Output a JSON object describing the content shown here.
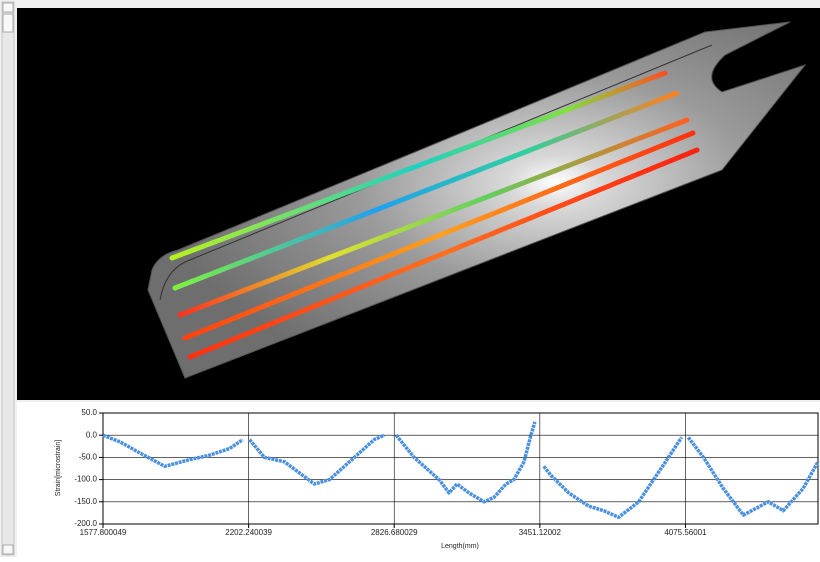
{
  "chart_data": {
    "type": "line",
    "y_label": "Strain[microstrain]",
    "x_label": "Length(mm)",
    "x": [
      1578,
      1651,
      1736,
      1843,
      1950,
      2035,
      2121,
      2177,
      2190,
      2206,
      2270,
      2356,
      2484,
      2549,
      2656,
      2741,
      2784,
      2810,
      2835,
      2912,
      3019,
      3062,
      3096,
      3147,
      3212,
      3254,
      3306,
      3340,
      3383,
      3413,
      3430,
      3440,
      3468,
      3498,
      3575,
      3661,
      3725,
      3789,
      3875,
      3939,
      4003,
      4059,
      4070,
      4088,
      4153,
      4238,
      4324,
      4431,
      4495,
      4580,
      4644
    ],
    "series": [
      {
        "color": "#4a90e2",
        "values": [
          0,
          -15,
          -40,
          -70,
          -55,
          -45,
          -30,
          -10,
          null,
          -10,
          -50,
          -60,
          -110,
          -100,
          -50,
          -10,
          0,
          null,
          0,
          -50,
          -100,
          -130,
          -110,
          -130,
          -150,
          -140,
          -110,
          -100,
          -60,
          0,
          30,
          null,
          -70,
          -90,
          -130,
          -160,
          -170,
          -185,
          -150,
          -100,
          -50,
          -5,
          null,
          -5,
          -50,
          -120,
          -180,
          -150,
          -170,
          -120,
          -60
        ]
      }
    ],
    "xlim": [
      1577.800049,
      4644
    ],
    "xticks": [
      1577.800049,
      2202.240039,
      2826.680029,
      3451.12002,
      4075.56001
    ],
    "ylim": [
      -200,
      50
    ],
    "yticks": [
      {
        "value": 50,
        "label": "50.0"
      },
      {
        "value": 0,
        "label": "0.0"
      },
      {
        "value": -50,
        "label": "-50.0"
      },
      {
        "value": -100,
        "label": "-100.0"
      },
      {
        "value": -150,
        "label": "-150.0"
      },
      {
        "value": -200,
        "label": "-200.0"
      }
    ],
    "grid": true
  }
}
